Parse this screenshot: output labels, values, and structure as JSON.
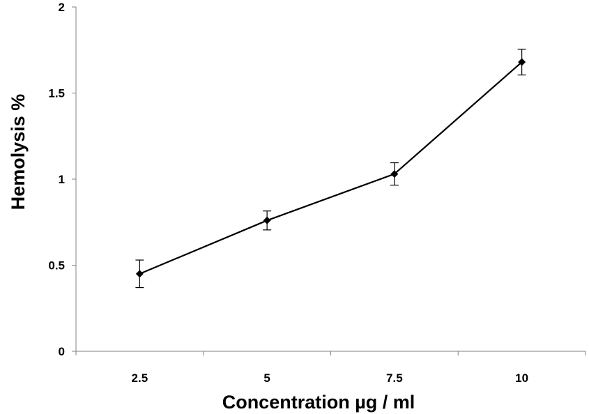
{
  "chart_data": {
    "type": "line",
    "title": "",
    "xlabel": "Concentration µg / ml",
    "ylabel": "Hemolysis %",
    "categories": [
      "2.5",
      "5",
      "7.5",
      "10"
    ],
    "series": [
      {
        "values": [
          0.45,
          0.76,
          1.03,
          1.68
        ],
        "error": [
          0.08,
          0.055,
          0.065,
          0.075
        ],
        "marker": "diamond",
        "color": "#000000"
      }
    ],
    "ylim": [
      0,
      2
    ],
    "yticks": [
      "0",
      "0.5",
      "1",
      "1.5",
      "2"
    ],
    "grid": false,
    "legend": "none"
  }
}
